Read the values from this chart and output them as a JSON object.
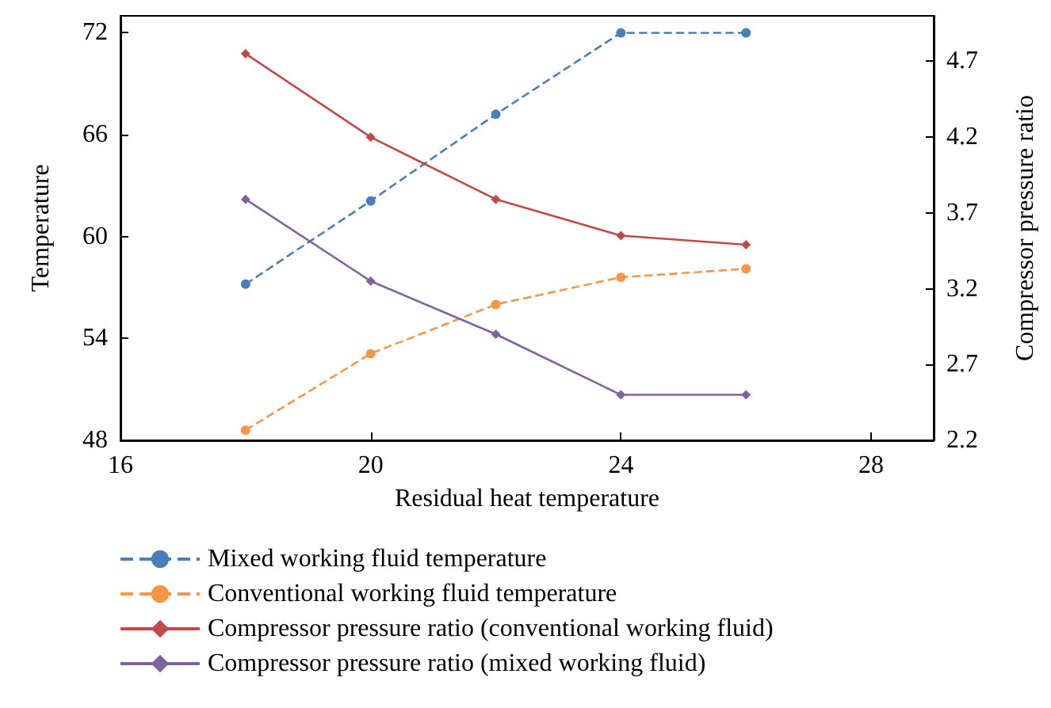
{
  "chart_data": {
    "type": "line",
    "xlabel": "Residual heat temperature",
    "ylabel": "Temperature",
    "y2label": "Compressor pressure ratio",
    "x": [
      18,
      20,
      22,
      24,
      26
    ],
    "xlim": [
      16,
      29
    ],
    "xticks": [
      16,
      20,
      24,
      28
    ],
    "ylim": [
      48,
      73
    ],
    "yticks": [
      48,
      54,
      60,
      66,
      72
    ],
    "y2lim": [
      2.2,
      5.0
    ],
    "y2ticks": [
      2.2,
      2.7,
      3.2,
      3.7,
      4.2,
      4.7
    ],
    "grid": false,
    "legend": "bottom",
    "series": [
      {
        "name": "Mixed working fluid temperature",
        "color": "#4a7ebb",
        "values": [
          57.2,
          62.1,
          67.2,
          72,
          72
        ],
        "line_style": "dashed",
        "marker": "circle"
      },
      {
        "name": "Conventional working fluid temperature",
        "color": "#f79646",
        "values": [
          48.6,
          53.1,
          56.0,
          57.6,
          58.1
        ],
        "line_style": "dashed",
        "marker": "circle"
      },
      {
        "name": "Compressor pressure ratio (conventional working fluid)",
        "color": "#be4b48",
        "values": [
          4.75,
          4.2,
          3.79,
          3.55,
          3.49
        ],
        "axis": "y2",
        "line_style": "solid",
        "marker": "diamond"
      },
      {
        "name": "Compressor pressure ratio (mixed working fluid)",
        "color": "#7e63a0",
        "values": [
          3.79,
          3.25,
          2.9,
          2.5,
          2.5
        ],
        "axis": "y2",
        "line_style": "solid",
        "marker": "diamond"
      }
    ]
  }
}
